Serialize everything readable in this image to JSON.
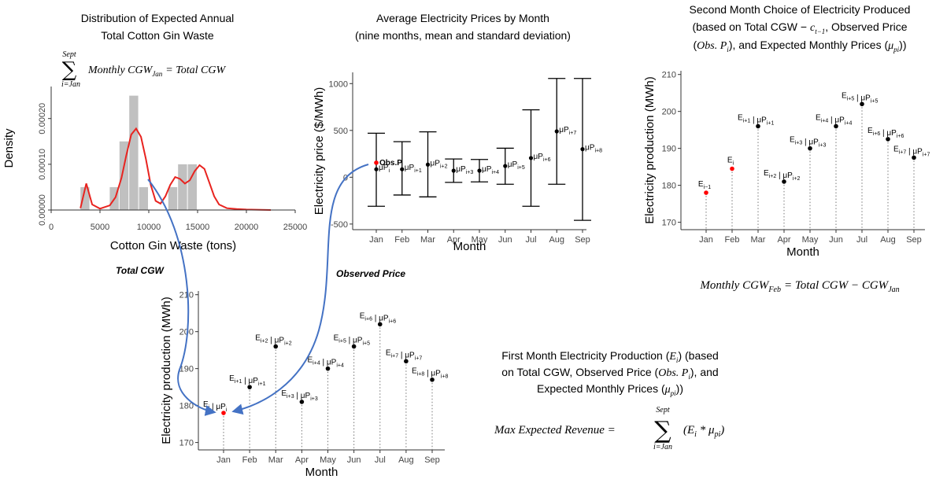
{
  "panel_density": {
    "title_lines": [
      "Distribution of Expected Annual",
      "Total Cotton Gin Waste"
    ],
    "formula": {
      "sum_top": "Sept",
      "sum_bottom": "i=Jan",
      "text": "Monthly CGW",
      "sub": "Jan",
      "rhs": "= Total CGW"
    }
  },
  "panel_prices": {
    "title_lines": [
      "Average Electricity Prices by Month",
      "(nine months, mean and standard deviation)"
    ]
  },
  "panel_second": {
    "title_lines": [
      "Second Month Choice of Electricity Produced"
    ],
    "title_line2": {
      "a": "(based on Total CGW − ",
      "c": "c",
      "csub": "t−1",
      "b": ", Observed Price"
    },
    "title_line3": {
      "a": "(",
      "obs": "Obs. P",
      "obssub": "i",
      "b": "), and Expected Monthly Prices (",
      "mu": "μ",
      "musub": "pi",
      "c": "))"
    },
    "formula": {
      "lhs": "Monthly CGW",
      "lhs_sub": "Feb",
      "rhs": "= Total CGW − CGW",
      "rhs_sub": "Jan"
    }
  },
  "panel_first": {
    "title_line1": {
      "a": "First Month Electricity Production (",
      "e": "E",
      "esub": "i",
      "b": ") (based"
    },
    "title_line2": {
      "a": "on Total CGW, Observed Price (",
      "obs": "Obs. P",
      "obssub": "i",
      "b": "), and"
    },
    "title_line3": {
      "a": "Expected Monthly Prices (",
      "mu": "μ",
      "musub": "pi",
      "b": "))"
    },
    "formula": {
      "lhs": "Max Expected Revenue =",
      "sum_top": "Sept",
      "sum_bottom": "i=Jan",
      "term": "(E",
      "term_sub": "i",
      "term_mid": " * μ",
      "term_sub2": "pi",
      "term_end": ")"
    }
  },
  "annotations": {
    "total_cgw": "Total CGW",
    "observed_price": "Observed Price"
  },
  "colors": {
    "curve": "#e8231f",
    "highlight": "#ff0000",
    "arrow": "#4472c4",
    "bars": "#c0c0c0",
    "points": "#000000"
  },
  "chart_data": [
    {
      "type": "bar",
      "title": "",
      "xlabel": "Cotton Gin Waste (tons)",
      "ylabel": "Density",
      "xlim": [
        0,
        25000
      ],
      "ylim": [
        0,
        0.00027
      ],
      "x_ticks": [
        0,
        5000,
        10000,
        15000,
        20000,
        25000
      ],
      "x_tick_labels": [
        "0",
        "5000",
        "10000",
        "15000",
        "20000",
        "25000"
      ],
      "y_ticks": [
        0,
        0.0001,
        0.0002
      ],
      "y_tick_labels": [
        "0.00000",
        "0.00010",
        "0.00020"
      ],
      "histogram": {
        "bin_width": 1000,
        "bins_start": [
          3000,
          6000,
          7000,
          8000,
          9000,
          12000,
          13000,
          14000
        ],
        "values": [
          5e-05,
          5e-05,
          0.00015,
          0.00025,
          5e-05,
          5e-05,
          0.0001,
          0.0001
        ]
      },
      "density_curve": {
        "x": [
          3000,
          3600,
          4200,
          5000,
          6000,
          6600,
          7200,
          7700,
          8200,
          8700,
          9200,
          9700,
          10200,
          10700,
          11200,
          11700,
          12200,
          12700,
          13200,
          13700,
          14200,
          14700,
          15200,
          15700,
          16200,
          16700,
          17200,
          18000,
          19000,
          20000,
          22500
        ],
        "y": [
          4e-06,
          5.8e-05,
          1.2e-05,
          3e-06,
          1e-05,
          2.8e-05,
          7e-05,
          0.00012,
          0.000165,
          0.000178,
          0.00016,
          0.000112,
          5.5e-05,
          2e-05,
          1.4e-05,
          3e-05,
          5.5e-05,
          7.2e-05,
          6.8e-05,
          5.8e-05,
          6.5e-05,
          8.5e-05,
          9.8e-05,
          9e-05,
          6e-05,
          3e-05,
          1.2e-05,
          4e-06,
          2e-06,
          1e-06,
          0
        ]
      }
    },
    {
      "type": "scatter",
      "title": "",
      "xlabel": "Month",
      "ylabel": "Electricity price ($/MWh)",
      "categories": [
        "Jan",
        "Feb",
        "Mar",
        "Apr",
        "May",
        "Jun",
        "Jul",
        "Aug",
        "Sep"
      ],
      "ylim": [
        -560,
        1120
      ],
      "y_ticks": [
        -500,
        0,
        500,
        1000
      ],
      "y_tick_labels": [
        "-500",
        "0",
        "500",
        "1000"
      ],
      "means": [
        85,
        85,
        135,
        70,
        70,
        120,
        205,
        490,
        300
      ],
      "error_low": [
        -310,
        -190,
        -210,
        -55,
        -50,
        -75,
        -310,
        -75,
        -460
      ],
      "error_high": [
        470,
        380,
        485,
        195,
        190,
        310,
        720,
        1055,
        1055
      ],
      "point_labels": [
        "μP i",
        "μP i+1",
        "μP i+2",
        "μP i+3",
        "μP i+4",
        "μP i+5",
        "μP i+6",
        "μP i+7",
        "μP i+8"
      ],
      "observed": {
        "label": "Obs.P",
        "value": 155
      }
    },
    {
      "type": "scatter",
      "title": "",
      "xlabel": "Month",
      "ylabel": "Electricity production (MWh)",
      "categories": [
        "Jan",
        "Feb",
        "Mar",
        "Apr",
        "May",
        "Jun",
        "Jul",
        "Aug",
        "Sep"
      ],
      "ylim": [
        168,
        211
      ],
      "y_ticks": [
        170,
        180,
        190,
        200,
        210
      ],
      "y_tick_labels": [
        "170",
        "180",
        "190",
        "200",
        "210"
      ],
      "values": [
        178,
        185,
        196,
        181,
        190,
        196,
        202,
        192,
        187
      ],
      "point_labels": [
        "E i | μP i",
        "E i+1 | μP i+1",
        "E i+2 | μP i+2",
        "E i+3 | μP i+3",
        "E i+4 | μP i+4",
        "E i+5 | μP i+5",
        "E i+6 | μP i+6",
        "E i+7 | μP i+7",
        "E i+8 | μP i+8"
      ],
      "highlight": [
        0
      ]
    },
    {
      "type": "scatter",
      "title": "",
      "xlabel": "Month",
      "ylabel": "Electricity production (MWh)",
      "categories": [
        "Jan",
        "Feb",
        "Mar",
        "Apr",
        "May",
        "Jun",
        "Jul",
        "Aug",
        "Sep"
      ],
      "ylim": [
        168,
        211
      ],
      "y_ticks": [
        170,
        180,
        190,
        200,
        210
      ],
      "y_tick_labels": [
        "170",
        "180",
        "190",
        "200",
        "210"
      ],
      "values": [
        178,
        184.5,
        196,
        181,
        190,
        196,
        202,
        192.5,
        187.5
      ],
      "point_labels": [
        "E i−1",
        "E i",
        "E i+1 | μP i+1",
        "E i+2 | μP i+2",
        "E i+3 | μP i+3",
        "E i+4 | μP i+4",
        "E i+5 | μP i+5",
        "E i+6 | μP i+6",
        "E i+7 | μP i+7"
      ],
      "highlight": [
        0,
        1
      ]
    }
  ]
}
